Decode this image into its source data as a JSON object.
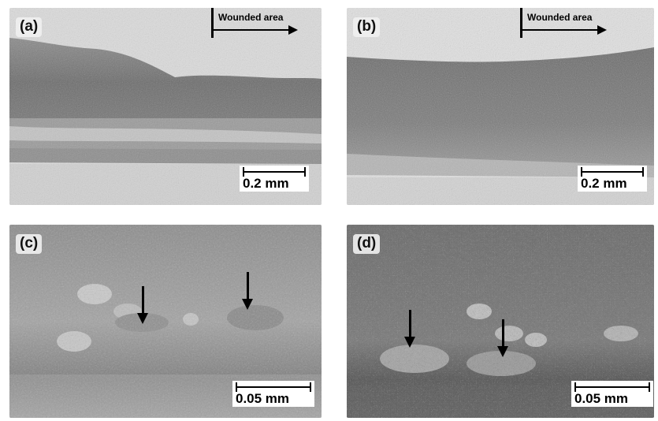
{
  "figure": {
    "panels": [
      {
        "id": "a",
        "label": "(a)",
        "annotation": "Wounded area",
        "scale_label": "0.2 mm"
      },
      {
        "id": "b",
        "label": "(b)",
        "annotation": "Wounded area",
        "scale_label": "0.2 mm"
      },
      {
        "id": "c",
        "label": "(c)",
        "scale_label": "0.05 mm"
      },
      {
        "id": "d",
        "label": "(d)",
        "scale_label": "0.05 mm"
      }
    ]
  },
  "colors": {
    "background_tissue": "#c8c8c8",
    "dark_tissue": "#6e6e6e",
    "light_area": "#dedede",
    "annotation": "#000000"
  }
}
